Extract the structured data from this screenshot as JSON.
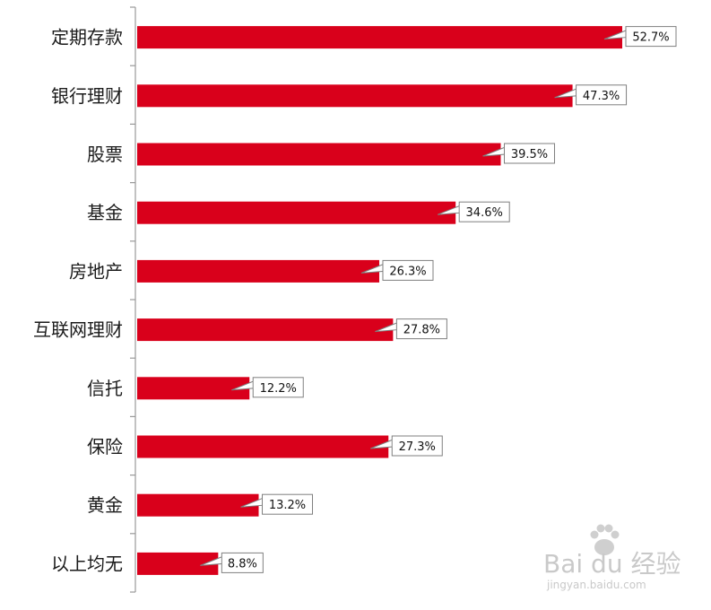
{
  "chart_data": {
    "type": "bar",
    "orientation": "horizontal",
    "categories": [
      "定期存款",
      "银行理财",
      "股票",
      "基金",
      "房地产",
      "互联网理财",
      "信托",
      "保险",
      "黄金",
      "以上均无"
    ],
    "values": [
      52.7,
      47.3,
      39.5,
      34.6,
      26.3,
      27.8,
      12.2,
      27.3,
      13.2,
      8.8
    ],
    "value_labels": [
      "52.7%",
      "47.3%",
      "39.5%",
      "34.6%",
      "26.3%",
      "27.8%",
      "12.2%",
      "27.3%",
      "13.2%",
      "8.8%"
    ],
    "unit": "%",
    "xlim": [
      0,
      60
    ],
    "grid": false,
    "legend": "none",
    "bar_color": "#d9001b",
    "axis_color": "#999999",
    "callout_border_color": "#7f7f7f"
  },
  "watermark": {
    "brand": "Bai du 经验",
    "url": "jingyan.baidu.com"
  }
}
